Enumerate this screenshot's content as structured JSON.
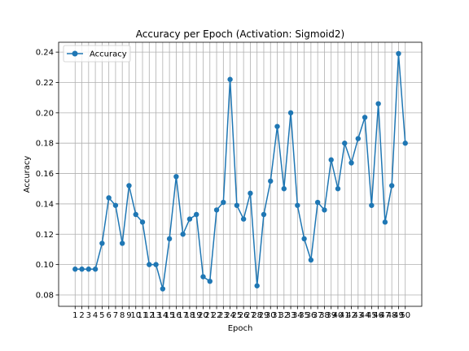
{
  "chart_data": {
    "type": "line",
    "title": "Accuracy per Epoch (Activation: Sigmoid2)",
    "xlabel": "Epoch",
    "ylabel": "Accuracy",
    "x": [
      1,
      2,
      3,
      4,
      5,
      6,
      7,
      8,
      9,
      10,
      11,
      12,
      13,
      14,
      15,
      16,
      17,
      18,
      19,
      20,
      21,
      22,
      23,
      24,
      25,
      26,
      27,
      28,
      29,
      30,
      31,
      32,
      33,
      34,
      35,
      36,
      37,
      38,
      39,
      40,
      41,
      42,
      43,
      44,
      45,
      46,
      47,
      48,
      49,
      50
    ],
    "series": [
      {
        "name": "Accuracy",
        "color": "#1f77b4",
        "marker": "circle",
        "values": [
          0.097,
          0.097,
          0.097,
          0.097,
          0.114,
          0.144,
          0.139,
          0.114,
          0.152,
          0.133,
          0.128,
          0.1,
          0.1,
          0.084,
          0.117,
          0.158,
          0.12,
          0.13,
          0.133,
          0.092,
          0.089,
          0.136,
          0.141,
          0.222,
          0.139,
          0.13,
          0.147,
          0.086,
          0.133,
          0.155,
          0.191,
          0.15,
          0.2,
          0.139,
          0.117,
          0.103,
          0.141,
          0.136,
          0.169,
          0.15,
          0.18,
          0.167,
          0.183,
          0.197,
          0.139,
          0.206,
          0.128,
          0.152,
          0.239,
          0.18
        ]
      }
    ],
    "xticks": [
      "1",
      "2",
      "3",
      "4",
      "5",
      "6",
      "7",
      "8",
      "9",
      "10",
      "11",
      "12",
      "13",
      "14",
      "15",
      "16",
      "17",
      "18",
      "19",
      "20",
      "21",
      "22",
      "23",
      "24",
      "25",
      "26",
      "27",
      "28",
      "29",
      "30",
      "31",
      "32",
      "33",
      "34",
      "35",
      "36",
      "37",
      "38",
      "39",
      "40",
      "41",
      "42",
      "43",
      "44",
      "45",
      "46",
      "47",
      "48",
      "49",
      "50"
    ],
    "yticks": [
      "0.08",
      "0.10",
      "0.12",
      "0.14",
      "0.16",
      "0.18",
      "0.20",
      "0.22",
      "0.24"
    ],
    "ytick_values": [
      0.08,
      0.1,
      0.12,
      0.14,
      0.16,
      0.18,
      0.2,
      0.22,
      0.24
    ],
    "xlim": [
      -1.45,
      52.45
    ],
    "ylim": [
      0.0725,
      0.2465
    ],
    "grid": true,
    "legend_position": "upper-left"
  }
}
